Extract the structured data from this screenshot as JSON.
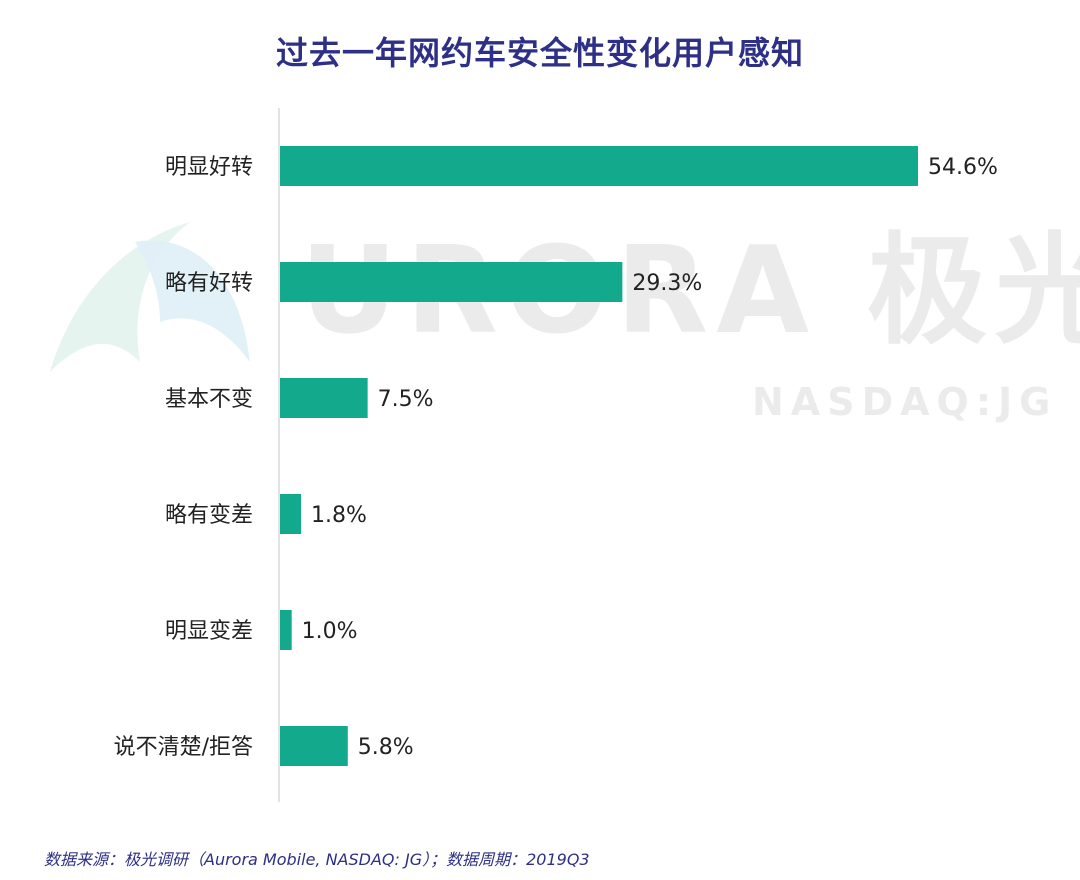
{
  "watermark": {
    "brand": "URORA 极光",
    "sub": "NASDAQ:JG"
  },
  "footer": {
    "source": "数据来源：极光调研（Aurora Mobile, NASDAQ: JG）；数据周期：2019Q3"
  },
  "colors": {
    "bar": "#13a98d",
    "title": "#2e2f86",
    "axis": "#e2e2e2"
  },
  "chart_data": {
    "type": "bar",
    "orientation": "horizontal",
    "title": "过去一年网约车安全性变化用户感知",
    "categories": [
      "明显好转",
      "略有好转",
      "基本不变",
      "略有变差",
      "明显变差",
      "说不清楚/拒答"
    ],
    "values": [
      54.6,
      29.3,
      7.5,
      1.8,
      1.0,
      5.8
    ],
    "value_labels": [
      "54.6%",
      "29.3%",
      "7.5%",
      "1.8%",
      "1.0%",
      "5.8%"
    ],
    "unit": "%",
    "xlim": [
      0,
      54.6
    ],
    "grid": false,
    "legend": "none"
  }
}
